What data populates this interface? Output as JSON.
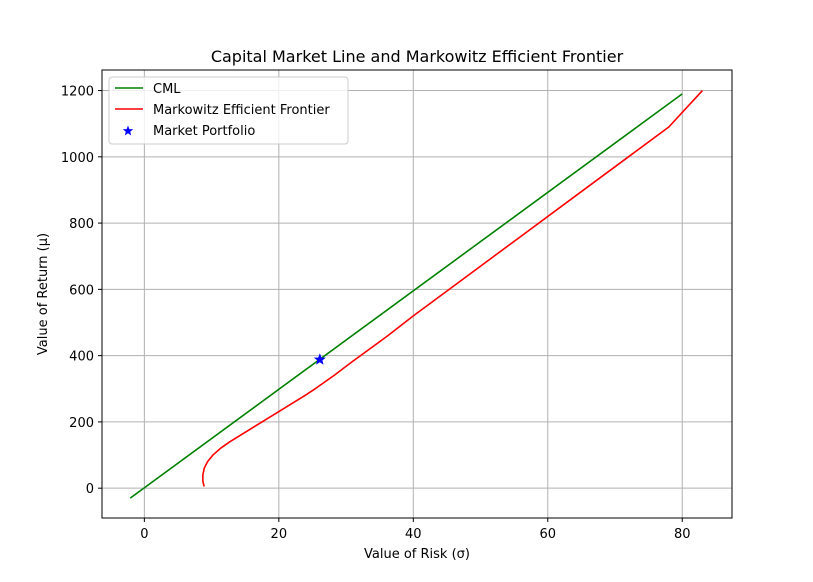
{
  "chart_data": {
    "type": "line",
    "title": "Capital Market Line and Markowitz Efficient Frontier",
    "xlabel": "Value of Risk (σ)",
    "ylabel": "Value of Return (μ)",
    "xlim": [
      -6.3,
      87.4
    ],
    "ylim": [
      -90,
      1262
    ],
    "xticks": [
      0,
      20,
      40,
      60,
      80
    ],
    "yticks": [
      0,
      200,
      400,
      600,
      800,
      1000,
      1200
    ],
    "grid": true,
    "legend_position": "upper-left",
    "colors": {
      "cml": "#008000",
      "frontier": "#ff0000",
      "market": "#0000ff"
    },
    "series": [
      {
        "name": "CML",
        "type": "line",
        "color": "#008000",
        "points": [
          [
            -2.1,
            -30
          ],
          [
            80.0,
            1190
          ]
        ]
      },
      {
        "name": "Markowitz Efficient Frontier",
        "type": "line",
        "color": "#ff0000",
        "points": [
          [
            8.9,
            5
          ],
          [
            8.7,
            20
          ],
          [
            8.7,
            40
          ],
          [
            8.9,
            60
          ],
          [
            9.4,
            80
          ],
          [
            10.2,
            100
          ],
          [
            11.3,
            120
          ],
          [
            12.7,
            140
          ],
          [
            14.3,
            160
          ],
          [
            15.9,
            180
          ],
          [
            17.5,
            200
          ],
          [
            19.1,
            220
          ],
          [
            20.7,
            240
          ],
          [
            22.3,
            260
          ],
          [
            23.9,
            280
          ],
          [
            25.4,
            300
          ],
          [
            26.8,
            320
          ],
          [
            28.2,
            340
          ],
          [
            29.5,
            360
          ],
          [
            30.8,
            380
          ],
          [
            33.5,
            420
          ],
          [
            36.2,
            460
          ],
          [
            40.0,
            520
          ],
          [
            48.0,
            640
          ],
          [
            56.0,
            760
          ],
          [
            64.0,
            880
          ],
          [
            72.0,
            1000
          ],
          [
            78.0,
            1090
          ],
          [
            83.0,
            1200
          ]
        ]
      },
      {
        "name": "Market Portfolio",
        "type": "scatter",
        "marker": "star",
        "color": "#0000ff",
        "points": [
          [
            26.1,
            388
          ]
        ]
      }
    ]
  }
}
